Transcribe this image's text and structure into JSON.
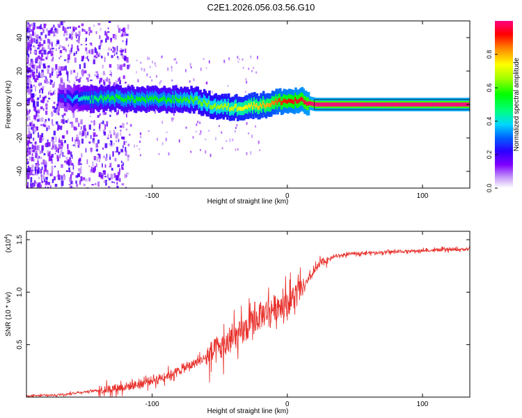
{
  "title": "C2E1.2026.056.03.56.G10",
  "chart_data": [
    {
      "type": "heatmap",
      "name": "spectrogram",
      "xlabel": "Height of straight line (km)",
      "ylabel": "Frequency (Hz)",
      "xlim": [
        -193,
        135
      ],
      "ylim": [
        -50,
        50
      ],
      "xticks": [
        -100,
        0,
        100
      ],
      "xtick_labels": [
        "-100",
        "0",
        "100"
      ],
      "yticks": [
        -40,
        -20,
        0,
        20,
        40
      ],
      "ytick_labels": [
        "-40",
        "-20",
        "0",
        "20",
        "40"
      ],
      "colorbar": {
        "label": "Normalized spectral amplitude",
        "range": [
          0,
          1
        ],
        "ticks": [
          0.0,
          0.2,
          0.4,
          0.6,
          0.8
        ],
        "tick_labels": [
          "0.0",
          "0.2",
          "0.4",
          "0.6",
          "0.8"
        ],
        "colors": [
          "#ffffff",
          "#8000ff",
          "#0000ff",
          "#00ffff",
          "#00ff00",
          "#ffff00",
          "#ff0000",
          "#ff0080"
        ]
      },
      "ridge": [
        {
          "x": -170,
          "y": 4,
          "a": 0.25
        },
        {
          "x": -150,
          "y": 3,
          "a": 0.45
        },
        {
          "x": -130,
          "y": 4,
          "a": 0.55
        },
        {
          "x": -110,
          "y": 3,
          "a": 0.55
        },
        {
          "x": -90,
          "y": 3,
          "a": 0.55
        },
        {
          "x": -70,
          "y": 3,
          "a": 0.6
        },
        {
          "x": -55,
          "y": -1,
          "a": 0.65
        },
        {
          "x": -40,
          "y": -2,
          "a": 0.7
        },
        {
          "x": -30,
          "y": -1,
          "a": 0.75
        },
        {
          "x": -15,
          "y": 0,
          "a": 0.8
        },
        {
          "x": -5,
          "y": 2,
          "a": 0.9
        },
        {
          "x": 10,
          "y": 2,
          "a": 0.95
        },
        {
          "x": 20,
          "y": 0,
          "a": 1.0
        },
        {
          "x": 135,
          "y": 0,
          "a": 1.0
        }
      ]
    },
    {
      "type": "line",
      "name": "snr",
      "xlabel": "Height of straight line (km)",
      "ylabel": "SNR (10 * v/v)",
      "scale_label": "(x10",
      "scale_exp": "4",
      "scale_close": ")",
      "xlim": [
        -193,
        135
      ],
      "ylim": [
        0,
        1.58
      ],
      "xticks": [
        -100,
        0,
        100
      ],
      "xtick_labels": [
        "-100",
        "0",
        "100"
      ],
      "yticks": [
        0.5,
        1.0,
        1.5
      ],
      "ytick_labels": [
        "0.5",
        "1.0",
        "1.5"
      ],
      "color": "#e8312c",
      "series": [
        {
          "name": "SNR",
          "x": [
            -193,
            -170,
            -150,
            -130,
            -110,
            -90,
            -75,
            -60,
            -45,
            -35,
            -25,
            -15,
            -5,
            0,
            5,
            10,
            15,
            20,
            25,
            35,
            50,
            70,
            90,
            110,
            135
          ],
          "values": [
            0.01,
            0.02,
            0.05,
            0.08,
            0.12,
            0.2,
            0.28,
            0.38,
            0.5,
            0.6,
            0.72,
            0.82,
            0.88,
            0.9,
            0.95,
            1.02,
            1.1,
            1.2,
            1.28,
            1.34,
            1.37,
            1.38,
            1.39,
            1.4,
            1.41
          ]
        }
      ]
    }
  ]
}
